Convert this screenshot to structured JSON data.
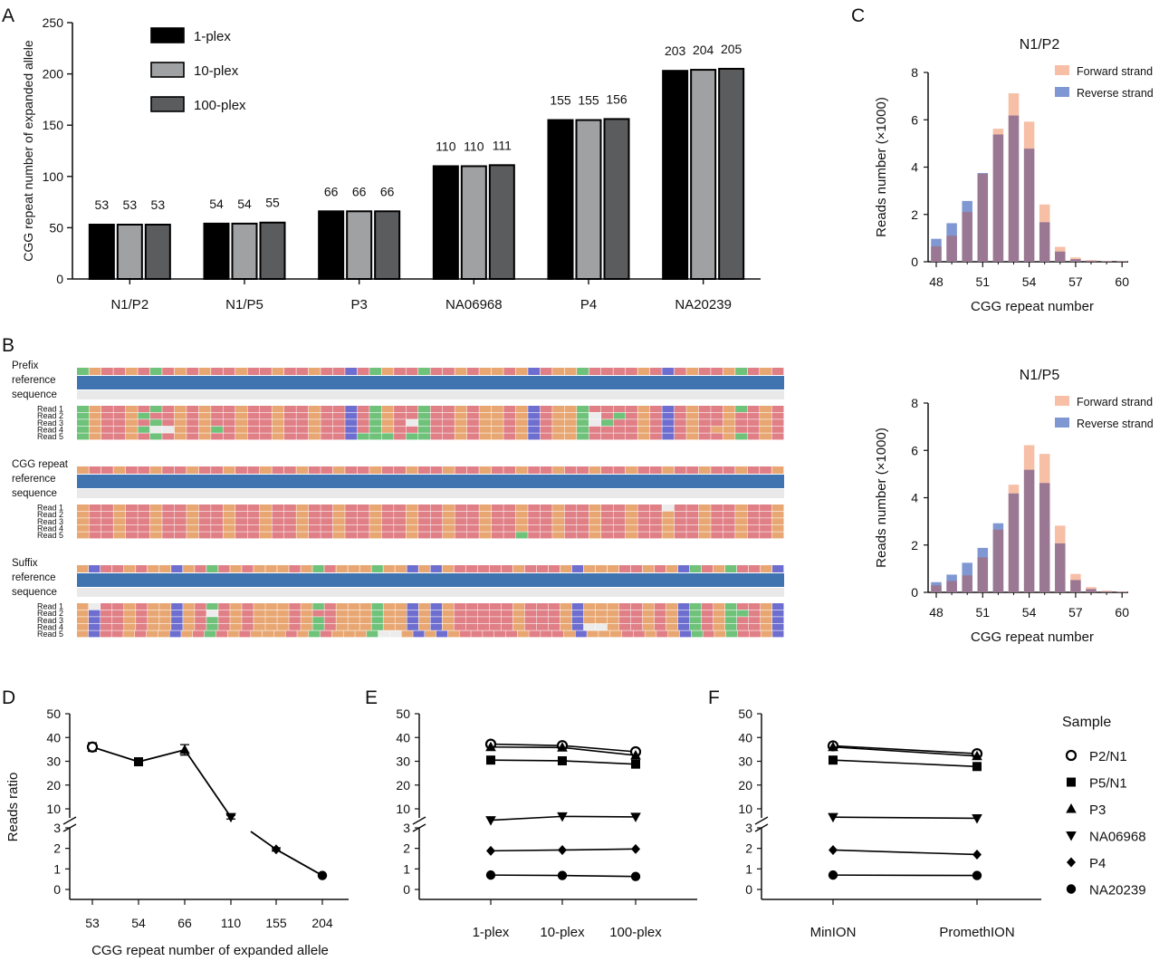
{
  "panels": {
    "A": "A",
    "B": "B",
    "C": "C",
    "D": "D",
    "E": "E",
    "F": "F"
  },
  "chart_data": [
    {
      "id": "A",
      "type": "bar",
      "ylabel": "CGG repeat number of expanded allele",
      "xlabel": "",
      "ylim": [
        0,
        250
      ],
      "yticks": [
        0,
        50,
        100,
        150,
        200,
        250
      ],
      "categories": [
        "N1/P2",
        "N1/P5",
        "P3",
        "NA06968",
        "P4",
        "NA20239"
      ],
      "legend_position": "top-left",
      "series": [
        {
          "name": "1-plex",
          "color": "#000000",
          "values": [
            53,
            54,
            66,
            110,
            155,
            203
          ]
        },
        {
          "name": "10-plex",
          "color": "#a0a1a3",
          "values": [
            53,
            54,
            66,
            110,
            155,
            204
          ]
        },
        {
          "name": "100-plex",
          "color": "#5b5c5e",
          "values": [
            53,
            55,
            66,
            111,
            156,
            205
          ]
        }
      ]
    },
    {
      "id": "C1",
      "type": "bar",
      "title": "N1/P2",
      "xlabel": "CGG repeat number",
      "ylabel": "Reads number (×1000)",
      "ylim": [
        0,
        8
      ],
      "yticks": [
        0,
        2,
        4,
        6,
        8
      ],
      "xticks": [
        48,
        51,
        54,
        57,
        60
      ],
      "x": [
        48,
        49,
        50,
        51,
        52,
        53,
        54,
        55,
        56,
        57,
        58,
        59,
        60
      ],
      "legend_position": "top-right",
      "series": [
        {
          "name": "Forward strand",
          "color": "#f6bfa6",
          "values": [
            0.65,
            1.1,
            2.1,
            3.72,
            5.62,
            7.12,
            5.92,
            2.42,
            0.63,
            0.18,
            0.07,
            0.03,
            0.02
          ]
        },
        {
          "name": "Reverse strand",
          "color": "#7f97d2",
          "values": [
            0.97,
            1.63,
            2.57,
            3.75,
            5.38,
            6.18,
            4.78,
            1.67,
            0.43,
            0.11,
            0.04,
            0.02,
            0.01
          ]
        }
      ]
    },
    {
      "id": "C2",
      "type": "bar",
      "title": "N1/P5",
      "xlabel": "CGG repeat number",
      "ylabel": "Reads number (×1000)",
      "ylim": [
        0,
        8
      ],
      "yticks": [
        0,
        2,
        4,
        6,
        8
      ],
      "xticks": [
        48,
        51,
        54,
        57,
        60
      ],
      "x": [
        48,
        49,
        50,
        51,
        52,
        53,
        54,
        55,
        56,
        57,
        58,
        59,
        60
      ],
      "legend_position": "top-right",
      "series": [
        {
          "name": "Forward strand",
          "color": "#f6bfa6",
          "values": [
            0.3,
            0.48,
            0.72,
            1.48,
            2.65,
            4.55,
            6.22,
            5.85,
            2.82,
            0.78,
            0.22,
            0.07,
            0.03
          ]
        },
        {
          "name": "Reverse strand",
          "color": "#7f97d2",
          "values": [
            0.43,
            0.75,
            1.25,
            1.88,
            2.92,
            4.18,
            5.18,
            4.62,
            2.07,
            0.52,
            0.14,
            0.04,
            0.02
          ]
        }
      ]
    },
    {
      "id": "D",
      "type": "line",
      "xlabel": "CGG repeat number of expanded allele",
      "ylabel": "Reads ratio",
      "categories": [
        "53",
        "54",
        "66",
        "110",
        "155",
        "204"
      ],
      "yticks_upper": [
        10,
        20,
        30,
        40,
        50
      ],
      "yticks_lower": [
        0,
        1,
        2,
        3
      ],
      "broken_axis": true,
      "series": [
        {
          "markers": [
            "circle-open",
            "square",
            "triangle",
            "triangle-down",
            "diamond",
            "circle"
          ],
          "values": [
            36,
            29.8,
            34.8,
            6.5,
            1.95,
            0.68
          ],
          "errors": [
            1.8,
            0.6,
            2.2,
            0.8,
            0.08,
            0.04
          ]
        }
      ]
    },
    {
      "id": "E",
      "type": "line",
      "xlabel": "",
      "ylabel": "",
      "categories": [
        "1-plex",
        "10-plex",
        "100-plex"
      ],
      "yticks_upper": [
        10,
        20,
        30,
        40,
        50
      ],
      "yticks_lower": [
        0,
        1,
        2,
        3
      ],
      "broken_axis": true,
      "series": [
        {
          "name": "P2/N1",
          "marker": "circle-open",
          "values": [
            37.2,
            36.6,
            34.0
          ]
        },
        {
          "name": "P5/N1",
          "marker": "square",
          "values": [
            30.5,
            30.2,
            28.8
          ]
        },
        {
          "name": "P3",
          "marker": "triangle",
          "values": [
            36.0,
            35.8,
            32.5
          ]
        },
        {
          "name": "NA06968",
          "marker": "triangle-down",
          "values": [
            5.2,
            6.8,
            6.6
          ]
        },
        {
          "name": "P4",
          "marker": "diamond",
          "values": [
            1.88,
            1.92,
            1.97
          ]
        },
        {
          "name": "NA20239",
          "marker": "circle",
          "values": [
            0.7,
            0.68,
            0.63
          ]
        }
      ]
    },
    {
      "id": "F",
      "type": "line",
      "xlabel": "",
      "ylabel": "",
      "categories": [
        "MinION",
        "PromethION"
      ],
      "yticks_upper": [
        10,
        20,
        30,
        40,
        50
      ],
      "yticks_lower": [
        0,
        1,
        2,
        3
      ],
      "broken_axis": true,
      "legend_title": "Sample",
      "legend_position": "right",
      "series": [
        {
          "name": "P2/N1",
          "marker": "circle-open",
          "values": [
            36.5,
            33.2
          ]
        },
        {
          "name": "P5/N1",
          "marker": "square",
          "values": [
            30.5,
            27.8
          ]
        },
        {
          "name": "P3",
          "marker": "triangle",
          "values": [
            36.0,
            32.2
          ]
        },
        {
          "name": "NA06968",
          "marker": "triangle-down",
          "values": [
            6.5,
            6.0
          ]
        },
        {
          "name": "P4",
          "marker": "diamond",
          "values": [
            1.92,
            1.7
          ]
        },
        {
          "name": "NA20239",
          "marker": "circle",
          "values": [
            0.7,
            0.68
          ]
        }
      ]
    }
  ],
  "alignments": [
    {
      "label": "Prefix\nreference\nsequence",
      "reference": "ACGGCGAGCGCGGCGGCGGCGGTGACGGAGGCGCCGCTGCCAGGGGCGTGCGGCAGCG",
      "reads": [
        {
          "label": "Read 1",
          "seq": "ACGGCGAGCGCGGCGGCGGCGGTGACGGAGGCGCCGCTGCCAGGGGCGTGCGGCAGCG"
        },
        {
          "label": "Read 2",
          "seq": "ACGGCAGGCGCGGCGGCGGCGGTGACGGAGGCGCCGCTGCCA*GAGCGTGCGGCGGCG"
        },
        {
          "label": "Read 3",
          "seq": "ACGGCGAGCGCGGCGGCGGCGGTGACG*AGGCGCCGCTGCCA*AGGCGTGCGGCGGCG"
        },
        {
          "label": "Read 4",
          "seq": "ACGGCA**CGCAGCGGCGGCGGTGACGGAGGCGCCGCTGCCAGGGGCGTGCGCCGGCG"
        },
        {
          "label": "Read 5",
          "seq": "ACGGCGAGCGCGGCGGCGGCGGTAAAGAAGGCGCCGCTGCCAGGGGCGTGCGGCAGCG"
        }
      ]
    },
    {
      "label": "CGG repeat\nreference\nsequence",
      "reference": "CGGCGGCGGCGGCGGCGGCGGCGGCGGCGGCGGCGGCGGCGGCGGCGGCGGCGGCGGC",
      "reads": [
        {
          "label": "Read 1",
          "seq": "CGGCGGCGGCGGCGGCGGCGGCGGCGGCGGCGGCGGCGGCGGCGGCGG*GGCGGCGGC"
        },
        {
          "label": "Read 2",
          "seq": "CGGCGGCGGCGGCGGCGGCGGCGGCGGCGGCGGCGGCGGCGGCGGCGGCGGCGGCGGC"
        },
        {
          "label": "Read 3",
          "seq": "CGGCGGCGGCGGCGGCGGCGGCGGCGGCGGCGGCGGCGGCGGCGGCGGCGGCGGCGGC"
        },
        {
          "label": "Read 4",
          "seq": "CGGCGGCGGCGGCGGCGGCGGCGGCGGCGGCGGCGGCGGCGGCGGCGGCGGCGGCGGC"
        },
        {
          "label": "Read 5",
          "seq": "CGGCGGCGGCGGCGGCGGCGGCGGCGGCGGCGGCGGAGGCGGCGGCGGCGGCGGCGGC"
        }
      ]
    },
    {
      "label": "Suffix\nreference\nsequence",
      "reference": "CTGGCGCCTCGAGCGCCCGCAGCCCACCTCTCGGGGGCGGGCTCCCGGCGCTAGCAGGCT",
      "reads": [
        {
          "label": "Read 1",
          "seq": "C*GGCGCCTCGAGCGCCCGCAGCCCACCTCTCGGGGGCGGGCTCCCGGCGCTAGCAGGCT"
        },
        {
          "label": "Read 2",
          "seq": "CTGGCGCCTCG*GCGCCCGCGGCCCACCTCTCGGGGGCGGGCTCCCGGCGCTAGCAAGCT"
        },
        {
          "label": "Read 3",
          "seq": "CTGGCGCCTCGAGCGCCCGCAGCCCACCTCTCGGGGGCGGGCTCCCGGCGCTAGCAGGCT"
        },
        {
          "label": "Read 4",
          "seq": "CTGGCGCCTCGAGCGCCCGCAGCCCACCTCTCGGGGGCGGGCT**CGGCGCTAGCAGGCT"
        },
        {
          "label": "Read 5",
          "seq": "CTGGCGCCTCGAGCGCCCGCAGCCCA**CTCTCGGGGGCGGGCTCCCGGCGCTAGCAGGCT"
        }
      ]
    }
  ],
  "base_colors": {
    "A": "#6fc27a",
    "C": "#e8a772",
    "G": "#e07f86",
    "T": "#6e6ed0",
    "*": "#ececec"
  },
  "track_color": "#3f74b0"
}
